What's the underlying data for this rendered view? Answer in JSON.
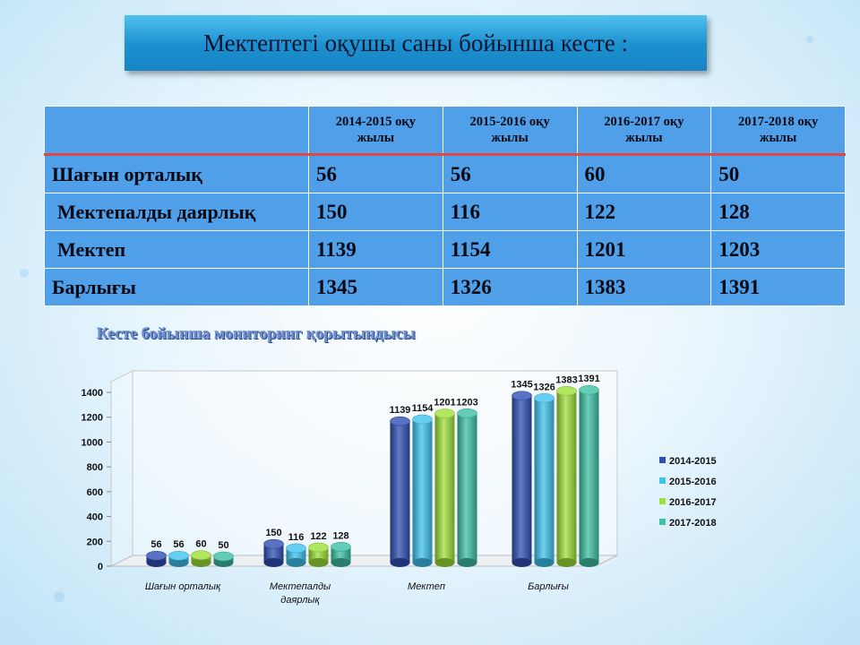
{
  "title": "Мектептегі оқушы саны бойынша кесте :",
  "table": {
    "headers": [
      "",
      "2014-2015 оқу жылы",
      "2015-2016 оқу жылы",
      "2016-2017 оқу жылы",
      "2017-2018 оқу жылы"
    ],
    "rows": [
      {
        "label": "Шағын орталық",
        "values": [
          "56",
          "56",
          "60",
          "50"
        ]
      },
      {
        "label": "Мектепалды даярлық",
        "values": [
          "150",
          "116",
          "122",
          "128"
        ]
      },
      {
        "label": "Мектеп",
        "values": [
          "1139",
          "1154",
          "1201",
          "1203"
        ]
      },
      {
        "label": "Барлығы",
        "values": [
          "1345",
          "1326",
          "1383",
          "1391"
        ]
      }
    ]
  },
  "chart_title": "Кесте бойынша мониторинг қорытындысы",
  "colors": {
    "series": [
      "#2f4fb5",
      "#3fc3ee",
      "#9ee03a",
      "#3dc1a6"
    ],
    "table_bg": "#4f9fe9",
    "title_bg": "#1b8fcf"
  },
  "chart_data": {
    "type": "bar",
    "title": "Кесте бойынша мониторинг қорытындысы",
    "categories": [
      "Шағын орталық",
      "Мектепалды даярлық",
      "Мектеп",
      "Барлығы"
    ],
    "series": [
      {
        "name": "2014-2015",
        "values": [
          56,
          150,
          1139,
          1345
        ]
      },
      {
        "name": "2015-2016",
        "values": [
          56,
          116,
          1154,
          1326
        ]
      },
      {
        "name": "2016-2017",
        "values": [
          60,
          122,
          1201,
          1383
        ]
      },
      {
        "name": "2017-2018",
        "values": [
          50,
          128,
          1203,
          1391
        ]
      }
    ],
    "ylim": [
      0,
      1400
    ],
    "yticks": [
      0,
      200,
      400,
      600,
      800,
      1000,
      1200,
      1400
    ],
    "grid": false,
    "legend": "right"
  }
}
